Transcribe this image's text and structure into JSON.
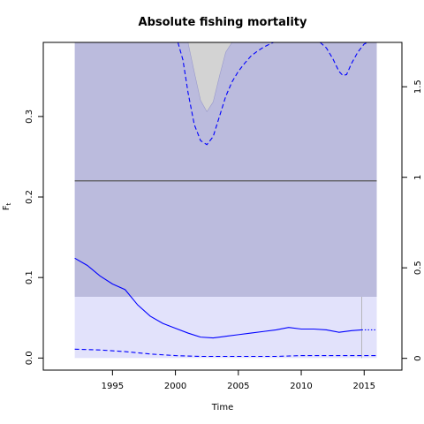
{
  "chart_data": {
    "type": "line",
    "title": "Absolute fishing mortality",
    "xlabel": "Time",
    "ylabel": "F",
    "ylabel_sub": "t",
    "xlim": [
      1989.5,
      2018
    ],
    "ylim": [
      -0.015,
      0.392
    ],
    "right_ylim": [
      -0.065,
      1.745
    ],
    "x_ticks": [
      1995,
      2000,
      2005,
      2010,
      2015
    ],
    "y_ticks": [
      0.0,
      0.1,
      0.2,
      0.3
    ],
    "right_y_ticks": [
      0,
      0.5,
      1,
      1.5
    ],
    "x_tick_labels": [
      "1995",
      "2000",
      "2005",
      "2010",
      "2015"
    ],
    "y_tick_labels": [
      "0.0",
      "0.1",
      "0.2",
      "0.3"
    ],
    "right_y_tick_labels": [
      "0",
      "0.5",
      "1",
      "1.5"
    ],
    "reference_line": 0.22,
    "last_data_year": 2014.8,
    "bands": [
      {
        "x0": 1992,
        "x1": 2016,
        "y0": 0.076,
        "y1": 0.392,
        "color": "#bbbbdd"
      },
      {
        "x0": 1992,
        "x1": 2016,
        "y0": 0.0,
        "y1": 0.076,
        "color": "#e2e2fb"
      }
    ],
    "gray_region": {
      "x": [
        2001.0,
        2001.5,
        2002.0,
        2002.5,
        2003.0,
        2003.5,
        2004.0,
        2004.5
      ],
      "y": [
        0.392,
        0.355,
        0.32,
        0.306,
        0.318,
        0.35,
        0.38,
        0.392
      ],
      "color": "#d3d3d3"
    },
    "series": [
      {
        "style": "solid",
        "color": "#0000ff",
        "x": [
          1992,
          1993,
          1994,
          1995,
          1996,
          1997,
          1998,
          1999,
          2000,
          2001,
          2002,
          2003,
          2004,
          2005,
          2006,
          2007,
          2008,
          2009,
          2010,
          2011,
          2012,
          2013,
          2014,
          2014.8
        ],
        "y": [
          0.124,
          0.115,
          0.102,
          0.092,
          0.085,
          0.066,
          0.052,
          0.043,
          0.037,
          0.031,
          0.026,
          0.025,
          0.027,
          0.029,
          0.031,
          0.033,
          0.035,
          0.038,
          0.036,
          0.036,
          0.035,
          0.032,
          0.034,
          0.035
        ]
      },
      {
        "style": "dotted",
        "color": "#0000ff",
        "x": [
          2014.8,
          2016
        ],
        "y": [
          0.035,
          0.035
        ]
      },
      {
        "style": "dashed",
        "color": "#0000ff",
        "x": [
          1992,
          1994,
          1996,
          1998,
          2000,
          2002,
          2004,
          2006,
          2008,
          2010,
          2012,
          2014,
          2016
        ],
        "y": [
          0.011,
          0.01,
          0.008,
          0.005,
          0.003,
          0.002,
          0.002,
          0.002,
          0.002,
          0.003,
          0.003,
          0.003,
          0.003
        ]
      },
      {
        "style": "dashed",
        "color": "#0000ff",
        "x": [
          2000.2,
          2000.6,
          2001.0,
          2001.5,
          2002.0,
          2002.5,
          2003.0,
          2003.5,
          2004.0,
          2004.5,
          2005.0,
          2005.5,
          2006.0,
          2006.5,
          2007.0,
          2007.5,
          2007.8
        ],
        "y": [
          0.392,
          0.37,
          0.33,
          0.29,
          0.27,
          0.265,
          0.275,
          0.3,
          0.325,
          0.343,
          0.356,
          0.366,
          0.375,
          0.381,
          0.386,
          0.39,
          0.392
        ]
      },
      {
        "style": "dashed",
        "color": "#0000ff",
        "x": [
          2011.5,
          2012,
          2012.5,
          2013,
          2013.3,
          2013.6,
          2014,
          2014.5,
          2015,
          2015.3
        ],
        "y": [
          0.392,
          0.385,
          0.372,
          0.356,
          0.351,
          0.352,
          0.366,
          0.38,
          0.39,
          0.392
        ]
      }
    ]
  }
}
